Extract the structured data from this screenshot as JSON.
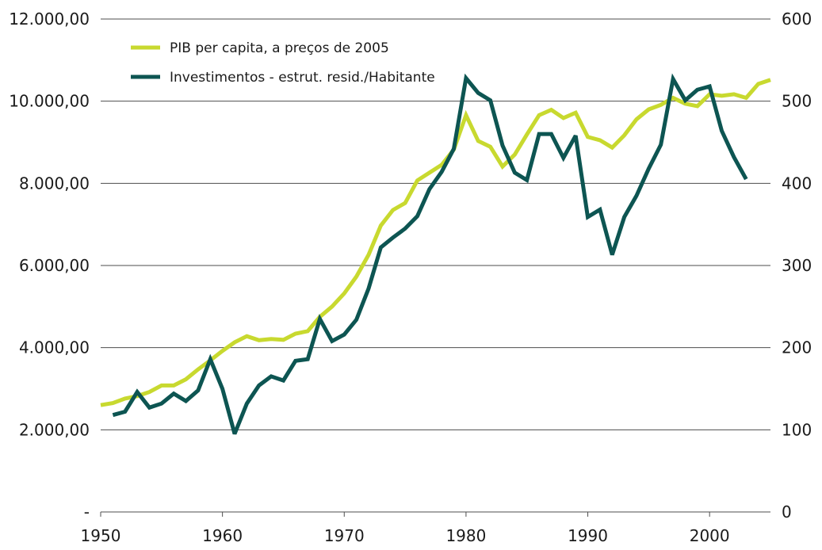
{
  "chart_data": {
    "type": "line",
    "title": "",
    "xlabel": "",
    "ylabel_left": "",
    "ylabel_right": "",
    "grid": true,
    "legend_position": "top-left",
    "xlim": [
      1950,
      2005
    ],
    "x_ticks": [
      "1950",
      "1960",
      "1970",
      "1980",
      "1990",
      "2000"
    ],
    "ylim_left": [
      0,
      12000
    ],
    "ylim_right": [
      0,
      600
    ],
    "y_ticks_left": [
      "-",
      "2.000,00",
      "4.000,00",
      "6.000,00",
      "8.000,00",
      "10.000,00",
      "12.000,00"
    ],
    "y_ticks_right": [
      "0",
      "100",
      "200",
      "300",
      "400",
      "500",
      "600"
    ],
    "series": [
      {
        "name": "PIB per capita, a preços de 2005",
        "axis": "left",
        "color": "#c8d92f",
        "x": [
          1950,
          1951,
          1952,
          1953,
          1954,
          1955,
          1956,
          1957,
          1958,
          1959,
          1960,
          1961,
          1962,
          1963,
          1964,
          1965,
          1966,
          1967,
          1968,
          1969,
          1970,
          1971,
          1972,
          1973,
          1974,
          1975,
          1976,
          1977,
          1978,
          1979,
          1980,
          1981,
          1982,
          1983,
          1984,
          1985,
          1986,
          1987,
          1988,
          1989,
          1990,
          1991,
          1992,
          1993,
          1994,
          1995,
          1996,
          1997,
          1998,
          1999,
          2000,
          2001,
          2002,
          2003,
          2004,
          2005
        ],
        "values": [
          2600,
          2650,
          2760,
          2820,
          2920,
          3080,
          3080,
          3230,
          3470,
          3690,
          3920,
          4130,
          4280,
          4180,
          4210,
          4190,
          4340,
          4400,
          4750,
          5000,
          5320,
          5730,
          6260,
          6970,
          7350,
          7520,
          8070,
          8260,
          8450,
          8820,
          9660,
          9030,
          8890,
          8410,
          8700,
          9190,
          9660,
          9790,
          9590,
          9720,
          9130,
          9050,
          8870,
          9170,
          9560,
          9800,
          9910,
          10080,
          9940,
          9880,
          10170,
          10130,
          10170,
          10080,
          10420,
          10520
        ]
      },
      {
        "name": "Investimentos - estrut. resid./Habitante",
        "axis": "right",
        "color": "#0d5552",
        "x": [
          1951,
          1952,
          1953,
          1954,
          1955,
          1956,
          1957,
          1958,
          1959,
          1960,
          1961,
          1962,
          1963,
          1964,
          1965,
          1966,
          1967,
          1968,
          1969,
          1970,
          1971,
          1972,
          1973,
          1974,
          1975,
          1976,
          1977,
          1978,
          1979,
          1980,
          1981,
          1982,
          1983,
          1984,
          1985,
          1986,
          1987,
          1988,
          1989,
          1990,
          1991,
          1992,
          1993,
          1994,
          1995,
          1996,
          1997,
          1998,
          1999,
          2000,
          2001,
          2002,
          2003
        ],
        "values": [
          118,
          122,
          146,
          127,
          132,
          144,
          135,
          148,
          186,
          150,
          95,
          132,
          154,
          165,
          160,
          184,
          186,
          235,
          208,
          216,
          234,
          272,
          322,
          334,
          345,
          360,
          393,
          414,
          442,
          528,
          510,
          501,
          446,
          413,
          404,
          460,
          460,
          431,
          458,
          359,
          368,
          313,
          359,
          385,
          418,
          447,
          527,
          501,
          514,
          518,
          464,
          432,
          405
        ]
      }
    ]
  }
}
